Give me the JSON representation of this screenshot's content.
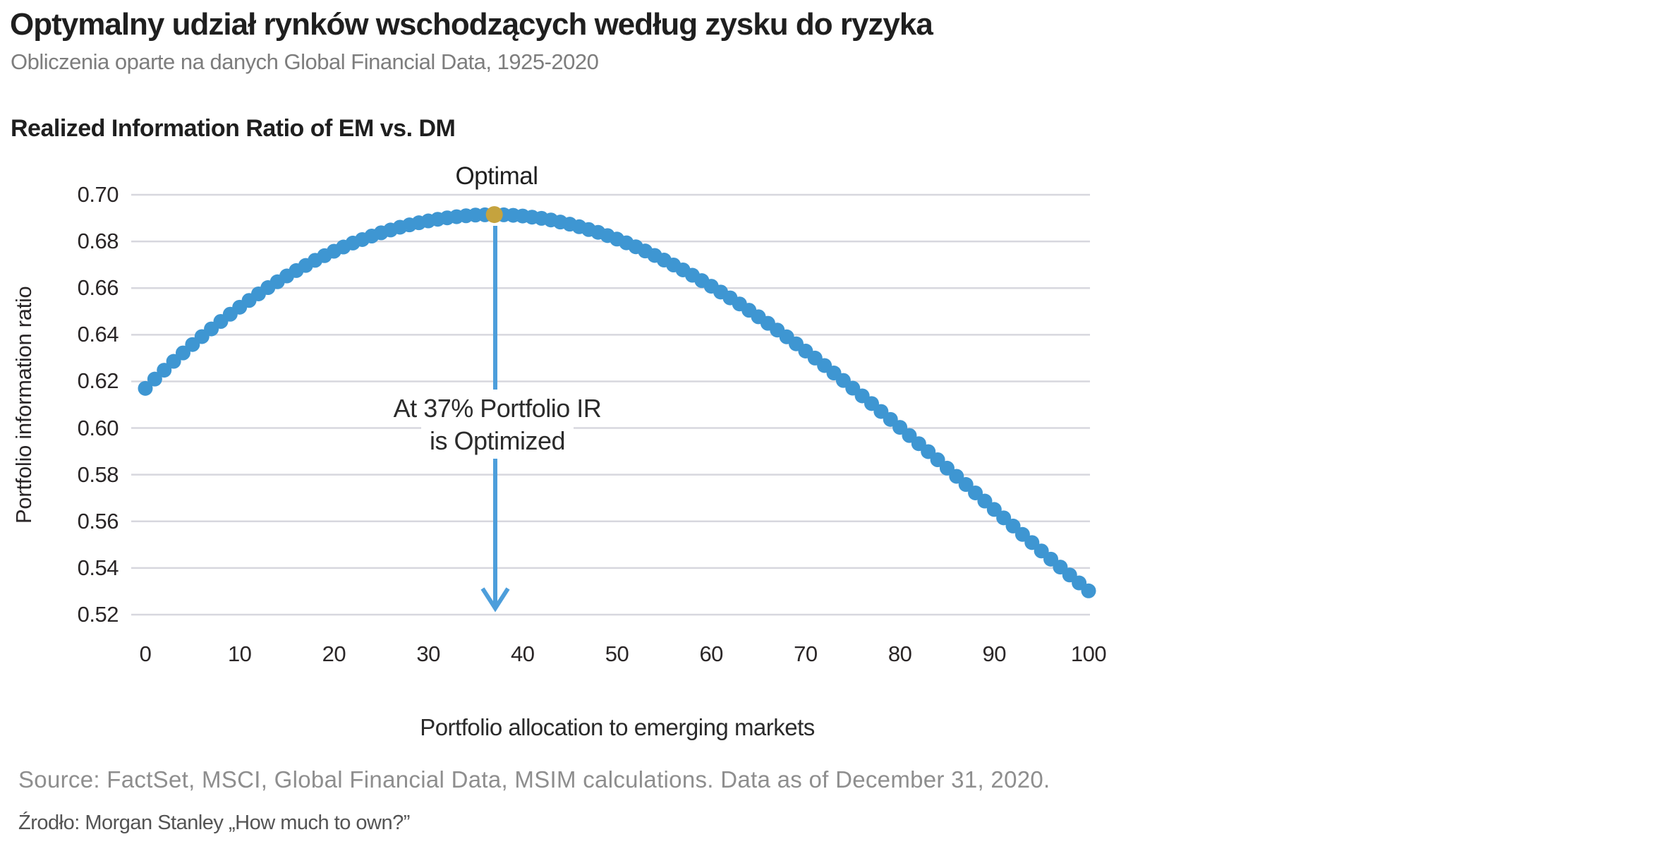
{
  "page": {
    "title": "Optymalny udział rynków wschodzących według zysku do ryzyka",
    "subtitle": "Obliczenia oparte na danych Global Financial Data, 1925-2020",
    "source_en": "Source: FactSet, MSCI, Global Financial Data, MSIM calculations. Data as of December 31, 2020.",
    "source_pl": "Źrodło: Morgan Stanley „How much to own?”"
  },
  "chart": {
    "title": "Realized Information Ratio of EM vs. DM",
    "x_axis_title": "Portfolio allocation to emerging markets",
    "y_axis_title": "Portfolio information ratio",
    "annotations": {
      "optimal": "Optimal",
      "callout_line1": "At 37% Portfolio IR",
      "callout_line2": "is Optimized"
    }
  },
  "chart_data": {
    "type": "scatter",
    "title": "Realized Information Ratio of EM vs. DM",
    "xlabel": "Portfolio allocation to emerging markets",
    "ylabel": "Portfolio information ratio",
    "xlim": [
      0,
      100
    ],
    "ylim": [
      0.52,
      0.7
    ],
    "grid": true,
    "legend": false,
    "x_ticks": [
      0,
      10,
      20,
      30,
      40,
      50,
      60,
      70,
      80,
      90,
      100
    ],
    "y_tick_labels": [
      "0.70",
      "0.68",
      "0.66",
      "0.64",
      "0.62",
      "0.60",
      "0.58",
      "0.56",
      "0.54",
      "0.52"
    ],
    "x_start": 0,
    "x_step": 1,
    "values": [
      0.617,
      0.621,
      0.6248,
      0.6286,
      0.6322,
      0.6358,
      0.6392,
      0.6425,
      0.6457,
      0.6488,
      0.6518,
      0.6547,
      0.6575,
      0.6602,
      0.6627,
      0.6652,
      0.6675,
      0.6697,
      0.6719,
      0.6739,
      0.6758,
      0.6776,
      0.6793,
      0.6808,
      0.6823,
      0.6837,
      0.6849,
      0.6861,
      0.6871,
      0.688,
      0.6888,
      0.6895,
      0.6901,
      0.6906,
      0.691,
      0.6913,
      0.6914,
      0.6915,
      0.6914,
      0.6912,
      0.6909,
      0.6904,
      0.6899,
      0.6892,
      0.6883,
      0.6874,
      0.6863,
      0.6851,
      0.6839,
      0.6825,
      0.681,
      0.6794,
      0.6777,
      0.6759,
      0.674,
      0.672,
      0.6699,
      0.6678,
      0.6655,
      0.6632,
      0.6608,
      0.6583,
      0.6558,
      0.6532,
      0.6505,
      0.6477,
      0.6449,
      0.642,
      0.6391,
      0.6361,
      0.633,
      0.63,
      0.6268,
      0.6236,
      0.6204,
      0.6171,
      0.6138,
      0.6105,
      0.6071,
      0.6037,
      0.6003,
      0.5968,
      0.5933,
      0.5899,
      0.5864,
      0.5828,
      0.5793,
      0.5758,
      0.5722,
      0.5687,
      0.5651,
      0.5615,
      0.558,
      0.5544,
      0.5509,
      0.5473,
      0.5438,
      0.5404,
      0.537,
      0.5336,
      0.5302
    ],
    "optimal_x": 37,
    "optimal_y": 0.6915,
    "colors": {
      "dot": "#3E96D2",
      "optimal_dot": "#C5A33E",
      "arrow": "#4D9EDB",
      "gridline": "#D7D7DE"
    }
  }
}
